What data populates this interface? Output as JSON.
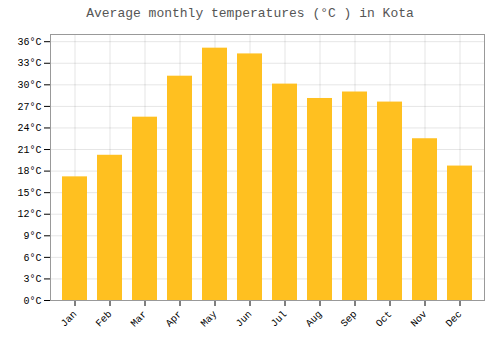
{
  "chart_data": {
    "type": "bar",
    "title": "Average monthly temperatures (°C ) in Kota",
    "categories": [
      "Jan",
      "Feb",
      "Mar",
      "Apr",
      "May",
      "Jun",
      "Jul",
      "Aug",
      "Sep",
      "Oct",
      "Nov",
      "Dec"
    ],
    "values": [
      17.2,
      20.2,
      25.5,
      31.2,
      35.1,
      34.3,
      30.1,
      28.1,
      29.0,
      27.6,
      22.5,
      18.7
    ],
    "color": "#FFC020",
    "ylim": [
      0,
      37
    ],
    "yticks": [
      {
        "value": 0,
        "label": "0°C"
      },
      {
        "value": 3,
        "label": "3°C"
      },
      {
        "value": 6,
        "label": "6°C"
      },
      {
        "value": 9,
        "label": "9°C"
      },
      {
        "value": 12,
        "label": "12°C"
      },
      {
        "value": 15,
        "label": "15°C"
      },
      {
        "value": 18,
        "label": "18°C"
      },
      {
        "value": 21,
        "label": "21°C"
      },
      {
        "value": 24,
        "label": "24°C"
      },
      {
        "value": 27,
        "label": "27°C"
      },
      {
        "value": 30,
        "label": "30°C"
      },
      {
        "value": 33,
        "label": "33°C"
      },
      {
        "value": 36,
        "label": "36°C"
      }
    ],
    "grid": true
  }
}
